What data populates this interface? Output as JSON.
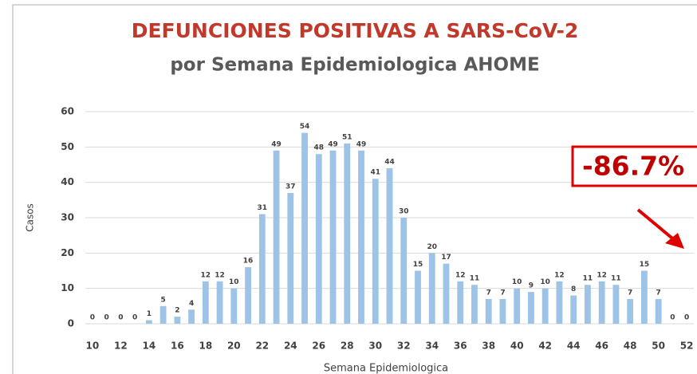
{
  "chart_data": {
    "type": "bar",
    "title": "DEFUNCIONES POSITIVAS A SARS-CoV-2",
    "subtitle": "por Semana Epidemiologica AHOME",
    "x_label": "Semana Epidemiologica",
    "y_label": "Casos",
    "annotation": "-86.7%",
    "categories": [
      "10",
      null,
      "12",
      null,
      "14",
      null,
      "16",
      null,
      "18",
      null,
      "20",
      null,
      "22",
      null,
      "24",
      null,
      "26",
      null,
      "28",
      null,
      "30",
      null,
      "32",
      null,
      "34",
      null,
      "36",
      null,
      "38",
      null,
      "40",
      null,
      "42",
      null,
      "44",
      null,
      "46",
      null,
      "48",
      null,
      "50",
      null,
      "52"
    ],
    "values": [
      0,
      0,
      0,
      0,
      1,
      5,
      2,
      4,
      12,
      12,
      10,
      16,
      31,
      49,
      37,
      54,
      48,
      49,
      51,
      49,
      41,
      44,
      30,
      15,
      20,
      17,
      12,
      11,
      7,
      7,
      10,
      9,
      10,
      12,
      8,
      11,
      12,
      11,
      7,
      15,
      7,
      0,
      0
    ],
    "color": "#9dc3e6",
    "ylim": [
      0,
      60
    ],
    "yticks": [
      0,
      10,
      20,
      30,
      40,
      50,
      60
    ],
    "grid": true
  }
}
